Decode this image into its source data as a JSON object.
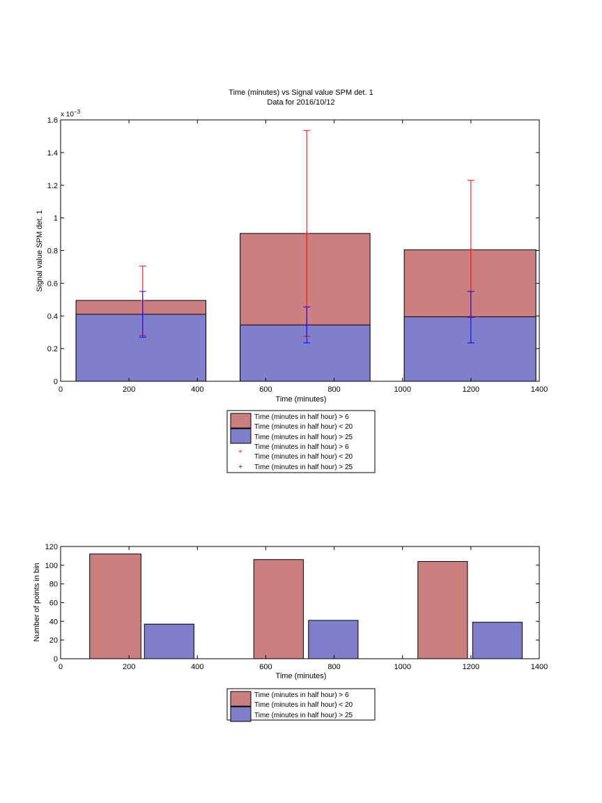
{
  "chart_data": [
    {
      "type": "bar",
      "title": "Time (minutes) vs Signal value SPM det. 1",
      "subtitle": "Data for 2016/10/12",
      "xlabel": "Time (minutes)",
      "ylabel": "Signal value SPM det. 1",
      "y_multiplier_label": "x 10",
      "y_multiplier_exponent": "−3",
      "xlim": [
        0,
        1400
      ],
      "ylim": [
        0,
        1.6
      ],
      "x_ticks": [
        0,
        200,
        400,
        600,
        800,
        1000,
        1200,
        1400
      ],
      "y_ticks": [
        0,
        0.2,
        0.4,
        0.6,
        0.8,
        1,
        1.2,
        1.4,
        1.6
      ],
      "bar_layout": "overlaid",
      "bins": [
        {
          "x_start": 45,
          "x_end": 425
        },
        {
          "x_start": 525,
          "x_end": 905
        },
        {
          "x_start": 1005,
          "x_end": 1390
        }
      ],
      "series": [
        {
          "name": "Time (minutes in half hour) > 6",
          "name_line2": "Time (minutes in half hour) < 20",
          "values": [
            0.495,
            0.905,
            0.805
          ],
          "color": "#cc7f7f"
        },
        {
          "name": "Time (minutes in half hour) > 25",
          "values": [
            0.41,
            0.345,
            0.395
          ],
          "color": "#7f7fcc"
        }
      ],
      "error_bars": [
        {
          "name": "Time (minutes in half hour) > 6",
          "name_line2": "Time (minutes in half hour) < 20",
          "color": "#ff0000",
          "points": [
            {
              "x": 240,
              "y": 0.495,
              "low": 0.28,
              "high": 0.705
            },
            {
              "x": 720,
              "y": 0.905,
              "low": 0.275,
              "high": 1.535
            },
            {
              "x": 1200,
              "y": 0.805,
              "low": 0.39,
              "high": 1.23
            }
          ]
        },
        {
          "name": "Time (minutes in half hour) > 25",
          "color": "#0000ff",
          "points": [
            {
              "x": 240,
              "y": 0.41,
              "low": 0.27,
              "high": 0.55
            },
            {
              "x": 720,
              "y": 0.345,
              "low": 0.235,
              "high": 0.455
            },
            {
              "x": 1200,
              "y": 0.395,
              "low": 0.235,
              "high": 0.55
            }
          ]
        }
      ],
      "legend": "below"
    },
    {
      "type": "bar",
      "xlabel": "Time (minutes)",
      "ylabel": "Number of points in bin",
      "xlim": [
        0,
        1400
      ],
      "ylim": [
        0,
        120
      ],
      "x_ticks": [
        0,
        200,
        400,
        600,
        800,
        1000,
        1200,
        1400
      ],
      "y_ticks": [
        0,
        20,
        40,
        60,
        80,
        100,
        120
      ],
      "bar_layout": "grouped",
      "bins": [
        {
          "x_start": 85,
          "x_end": 235,
          "x2_start": 245,
          "x2_end": 390
        },
        {
          "x_start": 565,
          "x_end": 710,
          "x2_start": 725,
          "x2_end": 870
        },
        {
          "x_start": 1045,
          "x_end": 1190,
          "x2_start": 1205,
          "x2_end": 1350
        }
      ],
      "series": [
        {
          "name": "Time (minutes in half hour) > 6",
          "name_line2": "Time (minutes in half hour) < 20",
          "values": [
            112,
            106,
            104
          ],
          "color": "#cc7f7f"
        },
        {
          "name": "Time (minutes in half hour) > 25",
          "values": [
            37,
            41,
            39
          ],
          "color": "#7f7fcc"
        }
      ],
      "legend": "below"
    }
  ]
}
